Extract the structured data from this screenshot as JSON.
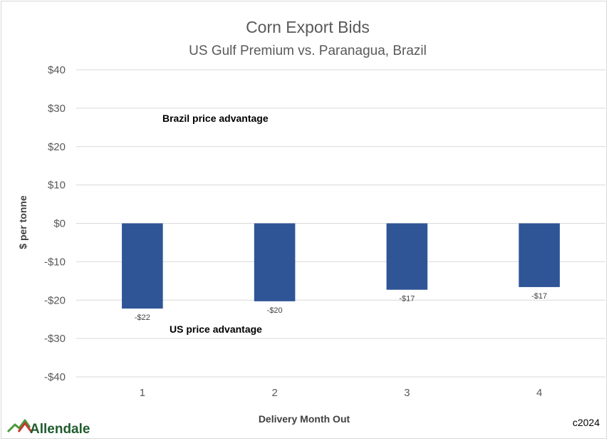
{
  "chart_data": {
    "type": "bar",
    "title": "Corn Export Bids",
    "subtitle": "US Gulf Premium vs. Paranagua, Brazil",
    "xlabel": "Delivery Month Out",
    "ylabel": "$ per tonne",
    "categories": [
      "1",
      "2",
      "3",
      "4"
    ],
    "values": [
      -22.2,
      -20.3,
      -17.3,
      -16.6
    ],
    "data_labels": [
      "-$22",
      "-$20",
      "-$17",
      "-$17"
    ],
    "ylim": [
      -40,
      40
    ],
    "yticks": [
      40,
      30,
      20,
      10,
      0,
      -10,
      -20,
      -30,
      -40
    ],
    "ytick_labels": [
      "$40",
      "$30",
      "$20",
      "$10",
      "$0",
      "-$10",
      "-$20",
      "-$30",
      "-$40"
    ],
    "grid": true,
    "bar_color": "#2f5597",
    "annotations": {
      "brazil": "Brazil price advantage",
      "us": "US price advantage"
    }
  },
  "branding": {
    "logo_text": "Allendale",
    "logo_icon": "mountain-icon",
    "copyright": "c2024",
    "logo_colors": {
      "green": "#4c9a3c",
      "red": "#c0392b",
      "text": "#1f5c2e"
    }
  }
}
